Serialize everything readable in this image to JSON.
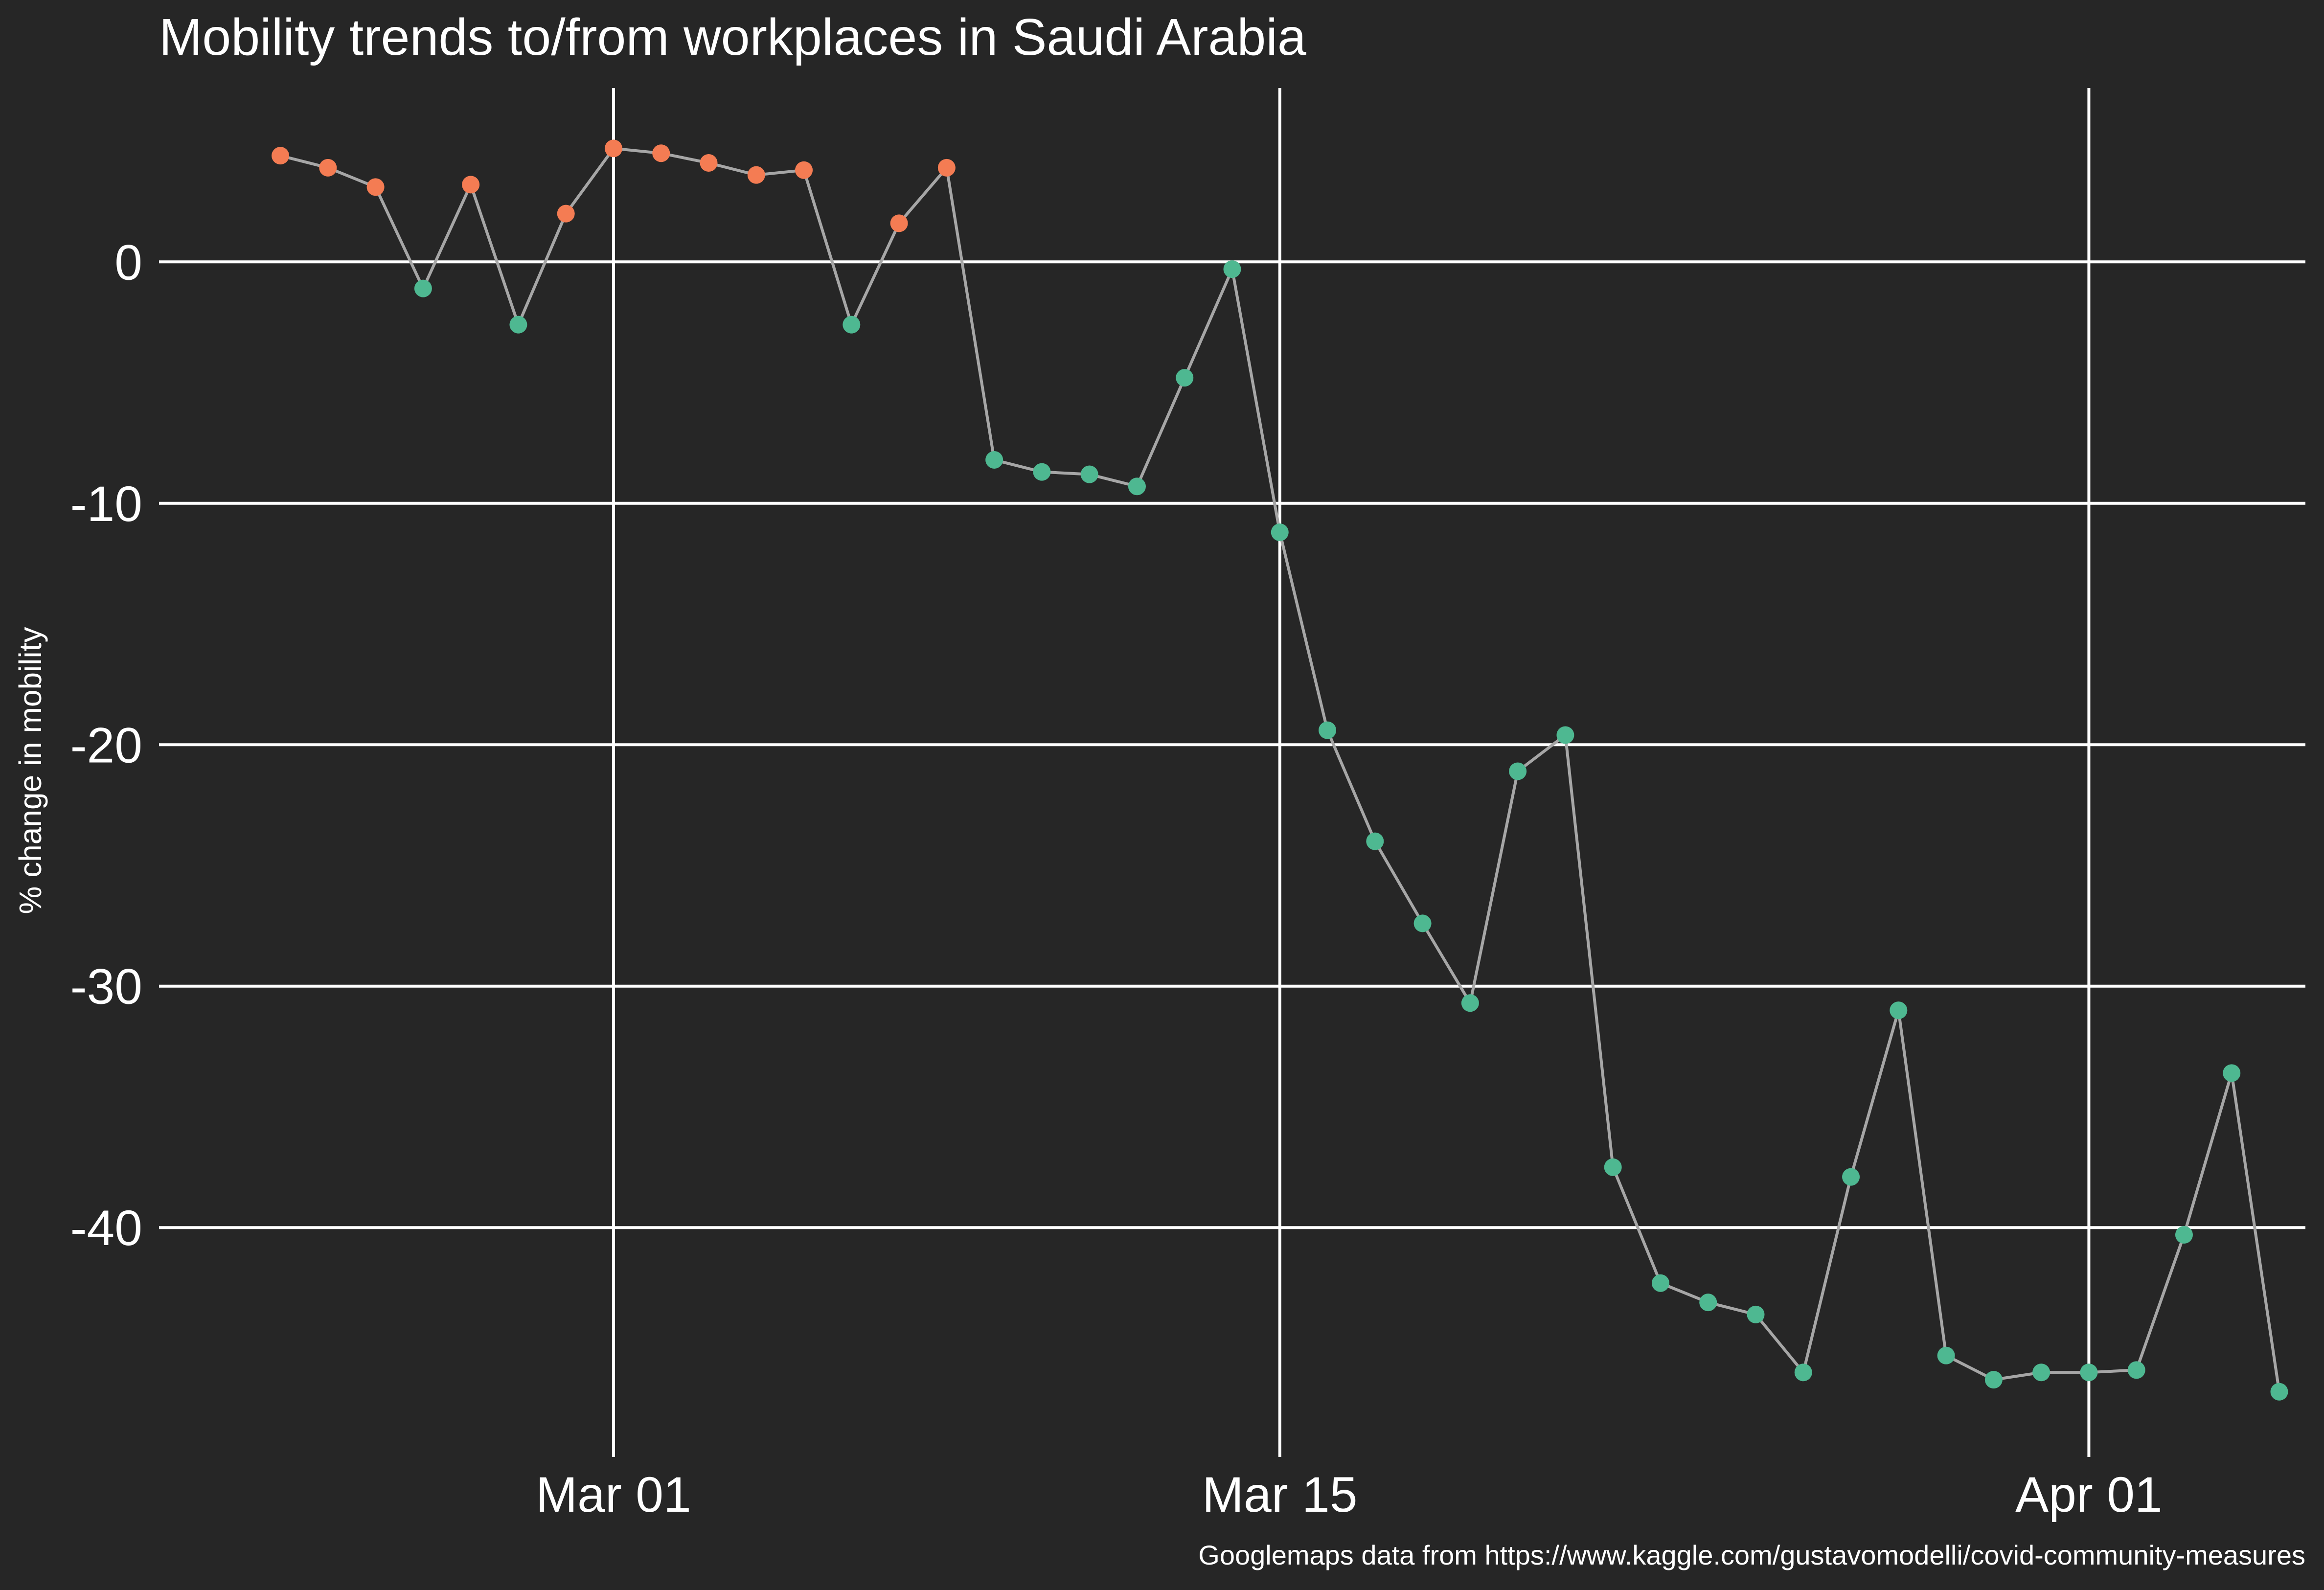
{
  "chart_data": {
    "type": "line",
    "title": "Mobility trends to/from workplaces in Saudi Arabia",
    "xlabel": "",
    "ylabel": "% change in mobility",
    "caption": "Googlemaps data from https://www.kaggle.com/gustavomodelli/covid-community-measures",
    "x_ticks": [
      "Mar 01",
      "Mar 15",
      "Apr 01"
    ],
    "y_ticks": [
      "0",
      "-10",
      "-20",
      "-30",
      "-40"
    ],
    "ylim": [
      -49.5,
      7.2
    ],
    "xlim": [
      "2020-02-21",
      "2020-04-05"
    ],
    "grid": true,
    "legend": "none",
    "colors": {
      "background": "#262626",
      "grid": "#ffffff",
      "line": "#a6a6a6",
      "positive_point": "#f47c53",
      "negative_point": "#4eb891",
      "text": "#ffffff"
    },
    "series": [
      {
        "x": [
          "2020-02-23",
          "2020-02-24",
          "2020-02-25",
          "2020-02-26",
          "2020-02-27",
          "2020-02-28",
          "2020-02-29",
          "2020-03-01",
          "2020-03-02",
          "2020-03-03",
          "2020-03-04",
          "2020-03-05",
          "2020-03-06",
          "2020-03-07",
          "2020-03-08",
          "2020-03-09",
          "2020-03-10",
          "2020-03-11",
          "2020-03-12",
          "2020-03-13",
          "2020-03-14",
          "2020-03-15",
          "2020-03-16",
          "2020-03-17",
          "2020-03-18",
          "2020-03-19",
          "2020-03-20",
          "2020-03-21",
          "2020-03-22",
          "2020-03-23",
          "2020-03-24",
          "2020-03-25",
          "2020-03-26",
          "2020-03-27",
          "2020-03-28",
          "2020-03-29",
          "2020-03-30",
          "2020-03-31",
          "2020-04-01",
          "2020-04-02",
          "2020-04-03",
          "2020-04-04",
          "2020-04-05"
        ],
        "y": [
          4.4,
          3.9,
          3.1,
          -1.1,
          3.2,
          -2.6,
          2.0,
          4.7,
          4.5,
          4.1,
          3.6,
          3.8,
          -2.6,
          1.6,
          3.9,
          -8.2,
          -8.7,
          -8.8,
          -9.3,
          -4.8,
          -0.3,
          -11.2,
          -19.4,
          -24.0,
          -27.4,
          -30.7,
          -21.1,
          -19.6,
          -37.5,
          -42.3,
          -43.1,
          -43.6,
          -46.0,
          -37.9,
          -31.0,
          -45.3,
          -46.3,
          -46.0,
          -46.0,
          -45.9,
          -40.3,
          -33.6,
          -46.8
        ]
      }
    ]
  }
}
